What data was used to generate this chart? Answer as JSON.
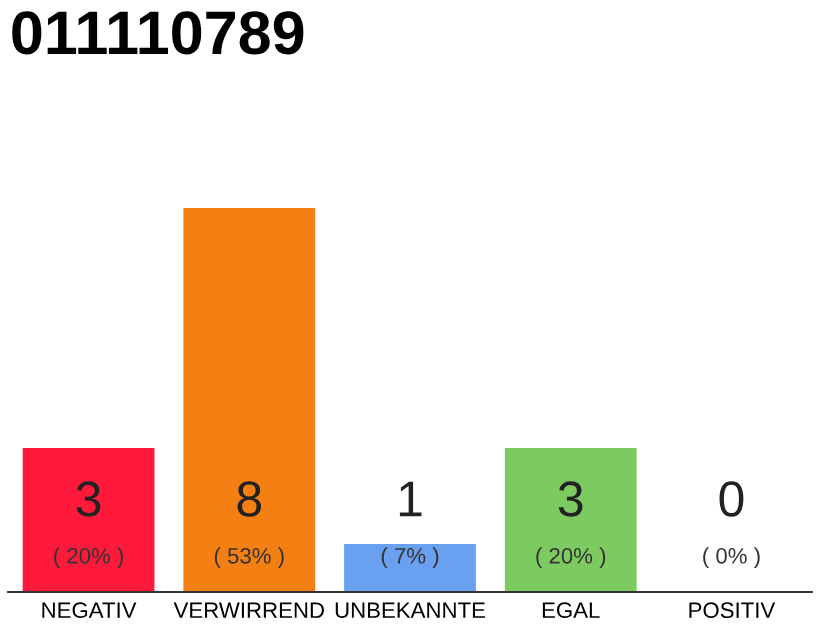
{
  "chart_data": {
    "type": "bar",
    "title": "011110789",
    "categories": [
      "NEGATIV",
      "VERWIRREND",
      "UNBEKANNTE",
      "EGAL",
      "POSITIV"
    ],
    "values": [
      3,
      8,
      1,
      3,
      0
    ],
    "colors": [
      "#ff1a3c",
      "#f47f12",
      "#6aa0f0",
      "#7dcb60",
      "#dddddd"
    ],
    "value_labels": [
      "3\n( 20% )",
      "8\n( 53% )",
      "1\n( 7% )",
      "3\n( 20% )",
      "0\n( 0% )"
    ],
    "grid": false,
    "legend": false
  }
}
